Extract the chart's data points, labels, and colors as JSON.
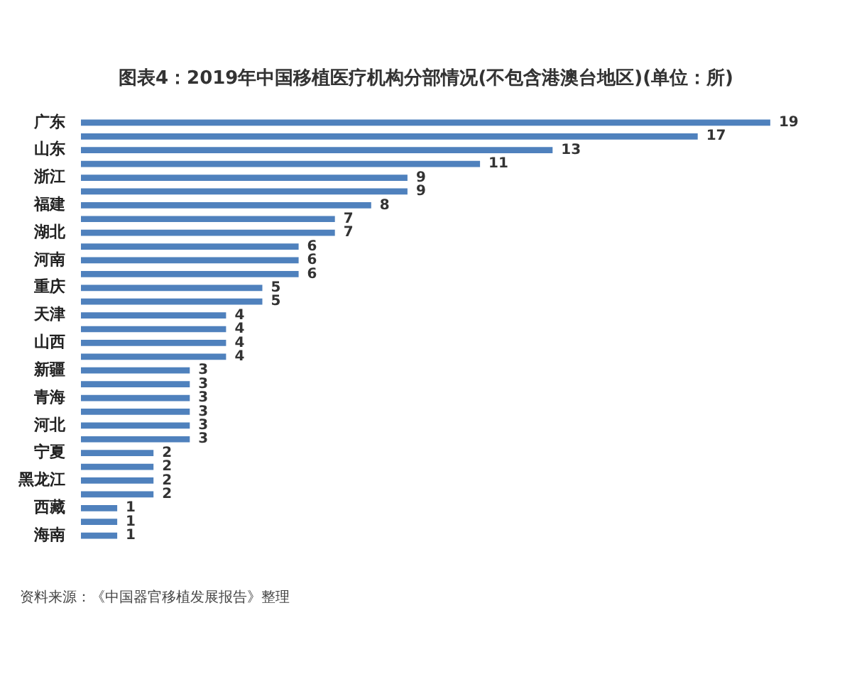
{
  "chart_data": {
    "type": "bar",
    "orientation": "horizontal",
    "title": "图表4：2019年中国移植医疗机构分部情况(不包含港澳台地区)(单位：所)",
    "categories": [
      "广东",
      null,
      "山东",
      null,
      "浙江",
      null,
      "福建",
      null,
      "湖北",
      null,
      "河南",
      null,
      "重庆",
      null,
      "天津",
      null,
      "山西",
      null,
      "新疆",
      null,
      "青海",
      null,
      "河北",
      null,
      "宁夏",
      null,
      "黑龙江",
      null,
      "西藏",
      null,
      "海南"
    ],
    "values": [
      19,
      17,
      13,
      11,
      9,
      9,
      8,
      7,
      7,
      6,
      6,
      6,
      5,
      5,
      4,
      4,
      4,
      4,
      3,
      3,
      3,
      3,
      3,
      3,
      2,
      2,
      2,
      2,
      1,
      1,
      1
    ],
    "color": "#4f81bd",
    "data_labels": true,
    "legend": false,
    "annotations": [
      "资料来源：《中国器官移植发展报告》整理"
    ]
  }
}
